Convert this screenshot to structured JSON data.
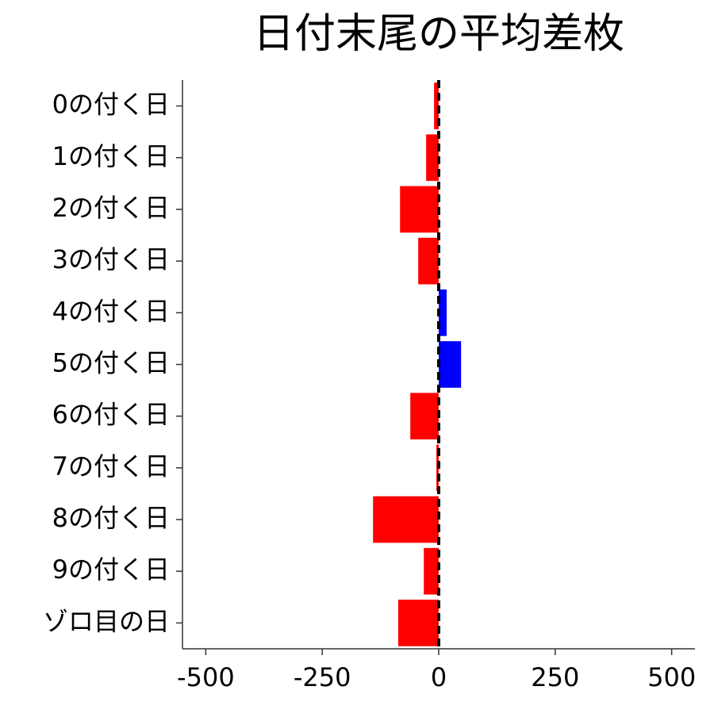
{
  "chart_data": {
    "type": "bar",
    "orientation": "horizontal",
    "title": "日付末尾の平均差枚",
    "categories": [
      "0の付く日",
      "1の付く日",
      "2の付く日",
      "3の付く日",
      "4の付く日",
      "5の付く日",
      "6の付く日",
      "7の付く日",
      "8の付く日",
      "9の付く日",
      "ゾロ目の日"
    ],
    "values": [
      -10,
      -27,
      -83,
      -44,
      17,
      48,
      -61,
      -5,
      -141,
      -32,
      -87
    ],
    "positive_color": "#0000ff",
    "negative_color": "#ff0000",
    "xlim": [
      -550,
      550
    ],
    "xticks": [
      -500,
      -250,
      0,
      250,
      500
    ],
    "grid": false
  }
}
